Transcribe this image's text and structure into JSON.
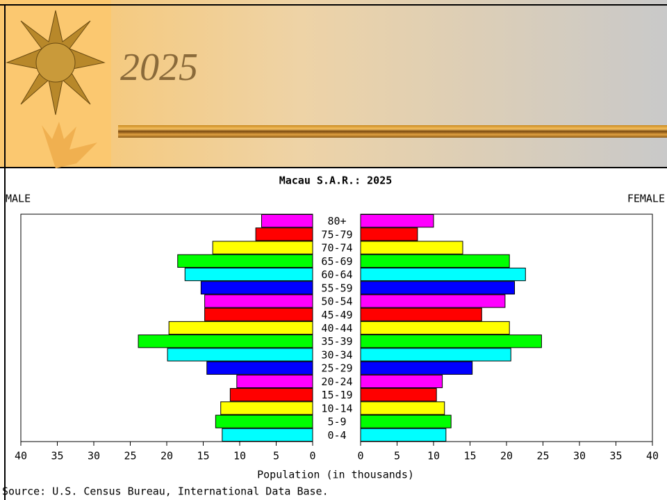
{
  "slide": {
    "title": "2025"
  },
  "chart_data": {
    "type": "pyramid",
    "title": "Macau S.A.R.: 2025",
    "categories": [
      "80+",
      "75-79",
      "70-74",
      "65-69",
      "60-64",
      "55-59",
      "50-54",
      "45-49",
      "40-44",
      "35-39",
      "30-34",
      "25-29",
      "20-24",
      "15-19",
      "10-14",
      "5-9",
      "0-4"
    ],
    "colors": [
      "#ff00ff",
      "#ff0000",
      "#ffff00",
      "#00ff00",
      "#00ffff",
      "#0000ff",
      "#ff00ff",
      "#ff0000",
      "#ffff00",
      "#00ff00",
      "#00ffff",
      "#0000ff",
      "#ff00ff",
      "#ff0000",
      "#ffff00",
      "#00ff00",
      "#00ffff"
    ],
    "series": [
      {
        "name": "MALE",
        "values": [
          7.0,
          7.8,
          13.7,
          18.5,
          17.5,
          15.3,
          14.8,
          14.8,
          19.7,
          23.9,
          19.9,
          14.5,
          10.4,
          11.3,
          12.6,
          13.3,
          12.4
        ]
      },
      {
        "name": "FEMALE",
        "values": [
          10.0,
          7.8,
          14.0,
          20.4,
          22.6,
          21.1,
          19.8,
          16.6,
          20.4,
          24.8,
          20.6,
          15.3,
          11.2,
          10.4,
          11.5,
          12.4,
          11.7
        ]
      }
    ],
    "xlim": [
      0,
      40
    ],
    "xticks": [
      0,
      5,
      10,
      15,
      20,
      25,
      30,
      35,
      40
    ],
    "xlabel": "Population (in thousands)",
    "source": "Source: U.S. Census Bureau, International Data Base."
  }
}
